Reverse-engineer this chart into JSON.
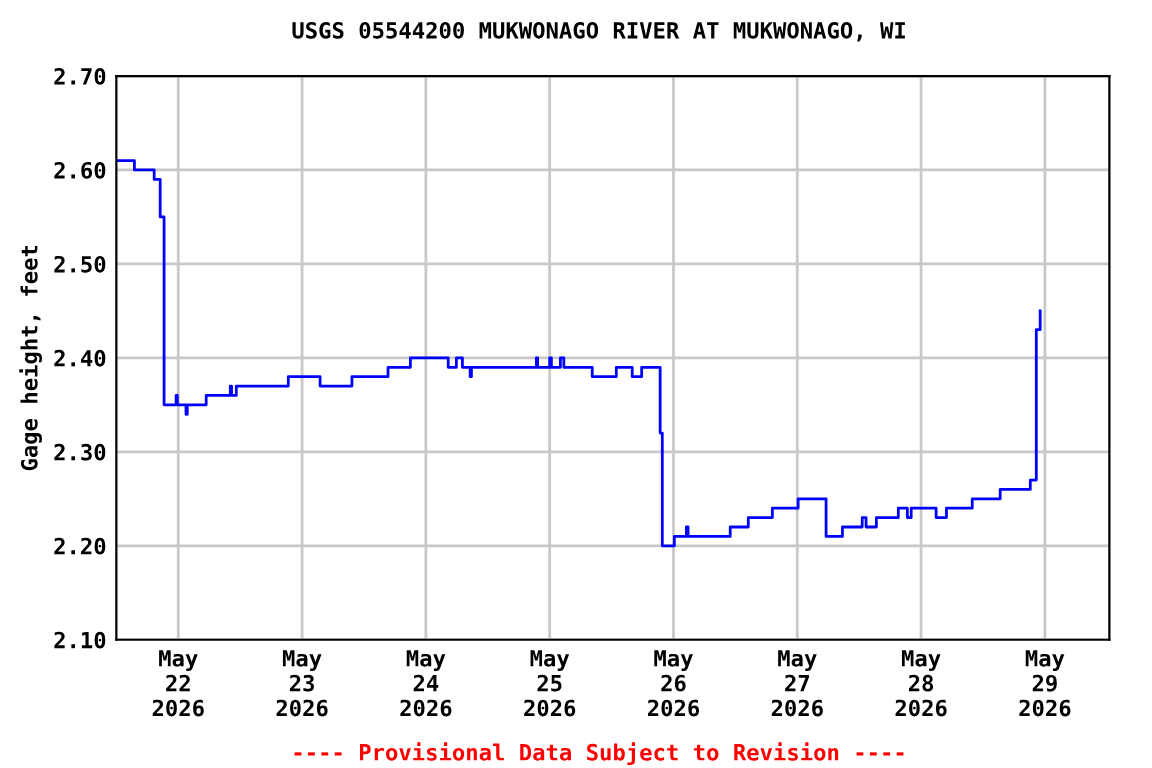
{
  "chart_data": {
    "type": "step",
    "title": "USGS 05544200 MUKWONAGO RIVER AT MUKWONAGO, WI",
    "ylabel": "Gage height, feet",
    "annotations": [
      "---- Provisional Data Subject to Revision ----"
    ],
    "series": [
      {
        "color": "#0000ff",
        "x": [
          "2026-05-21T12:00",
          "2026-05-21T15:30",
          "2026-05-21T19:20",
          "2026-05-21T20:30",
          "2026-05-21T21:15",
          "2026-05-21T23:35",
          "2026-05-21T23:50",
          "2026-05-22T01:30",
          "2026-05-22T01:45",
          "2026-05-22T05:25",
          "2026-05-22T10:05",
          "2026-05-22T10:20",
          "2026-05-22T11:15",
          "2026-05-22T21:20",
          "2026-05-23T03:30",
          "2026-05-23T09:40",
          "2026-05-23T16:40",
          "2026-05-23T21:00",
          "2026-05-24T04:20",
          "2026-05-24T05:55",
          "2026-05-24T07:05",
          "2026-05-24T08:35",
          "2026-05-24T08:50",
          "2026-05-24T21:25",
          "2026-05-24T21:40",
          "2026-05-25T00:00",
          "2026-05-25T00:20",
          "2026-05-25T02:05",
          "2026-05-25T02:45",
          "2026-05-25T08:15",
          "2026-05-25T12:55",
          "2026-05-25T16:00",
          "2026-05-25T17:50",
          "2026-05-25T21:25",
          "2026-05-25T21:50",
          "2026-05-26T00:10",
          "2026-05-26T02:30",
          "2026-05-26T02:50",
          "2026-05-26T11:00",
          "2026-05-26T14:30",
          "2026-05-26T19:10",
          "2026-05-27T00:10",
          "2026-05-27T05:35",
          "2026-05-27T06:50",
          "2026-05-27T08:45",
          "2026-05-27T12:35",
          "2026-05-27T13:20",
          "2026-05-27T15:20",
          "2026-05-27T19:35",
          "2026-05-27T21:20",
          "2026-05-27T22:05",
          "2026-05-28T02:55",
          "2026-05-28T04:55",
          "2026-05-28T09:55",
          "2026-05-28T15:20",
          "2026-05-28T21:10",
          "2026-05-28T22:20",
          "2026-05-28T23:05"
        ],
        "values": [
          2.61,
          2.6,
          2.59,
          2.55,
          2.35,
          2.36,
          2.35,
          2.34,
          2.35,
          2.36,
          2.37,
          2.36,
          2.37,
          2.38,
          2.37,
          2.38,
          2.39,
          2.4,
          2.39,
          2.4,
          2.39,
          2.38,
          2.39,
          2.4,
          2.39,
          2.4,
          2.39,
          2.4,
          2.39,
          2.38,
          2.39,
          2.38,
          2.39,
          2.32,
          2.2,
          2.21,
          2.22,
          2.21,
          2.22,
          2.23,
          2.24,
          2.25,
          2.21,
          2.21,
          2.22,
          2.23,
          2.22,
          2.23,
          2.24,
          2.23,
          2.24,
          2.23,
          2.24,
          2.25,
          2.26,
          2.27,
          2.43,
          2.45
        ]
      }
    ],
    "xlim": [
      "2026-05-21T12:00",
      "2026-05-29T12:30"
    ],
    "xticks": [
      {
        "value": "2026-05-22",
        "label": "May\n22\n2026"
      },
      {
        "value": "2026-05-23",
        "label": "May\n23\n2026"
      },
      {
        "value": "2026-05-24",
        "label": "May\n24\n2026"
      },
      {
        "value": "2026-05-25",
        "label": "May\n25\n2026"
      },
      {
        "value": "2026-05-26",
        "label": "May\n26\n2026"
      },
      {
        "value": "2026-05-27",
        "label": "May\n27\n2026"
      },
      {
        "value": "2026-05-28",
        "label": "May\n28\n2026"
      },
      {
        "value": "2026-05-29",
        "label": "May\n29\n2026"
      }
    ],
    "ylim": [
      2.1,
      2.7
    ],
    "yticks": [
      {
        "value": 2.1,
        "label": "2.10"
      },
      {
        "value": 2.2,
        "label": "2.20"
      },
      {
        "value": 2.3,
        "label": "2.30"
      },
      {
        "value": 2.4,
        "label": "2.40"
      },
      {
        "value": 2.5,
        "label": "2.50"
      },
      {
        "value": 2.6,
        "label": "2.60"
      },
      {
        "value": 2.7,
        "label": "2.70"
      }
    ],
    "grid": true
  }
}
